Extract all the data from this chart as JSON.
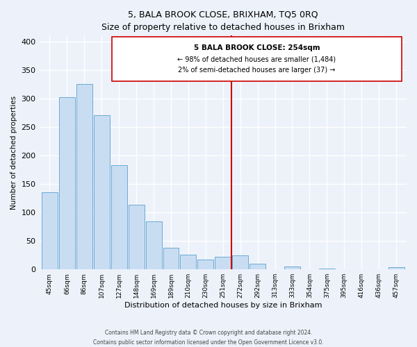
{
  "title": "5, BALA BROOK CLOSE, BRIXHAM, TQ5 0RQ",
  "subtitle": "Size of property relative to detached houses in Brixham",
  "xlabel": "Distribution of detached houses by size in Brixham",
  "ylabel": "Number of detached properties",
  "bar_labels": [
    "45sqm",
    "66sqm",
    "86sqm",
    "107sqm",
    "127sqm",
    "148sqm",
    "169sqm",
    "189sqm",
    "210sqm",
    "230sqm",
    "251sqm",
    "272sqm",
    "292sqm",
    "313sqm",
    "333sqm",
    "354sqm",
    "375sqm",
    "395sqm",
    "416sqm",
    "436sqm",
    "457sqm"
  ],
  "bar_heights": [
    135,
    302,
    325,
    271,
    183,
    113,
    84,
    38,
    26,
    17,
    22,
    25,
    10,
    0,
    5,
    0,
    2,
    0,
    0,
    0,
    4
  ],
  "bar_color": "#c9ddf2",
  "bar_edge_color": "#6aaad4",
  "vline_x_index": 10.5,
  "vline_color": "#cc0000",
  "annotation_title": "5 BALA BROOK CLOSE: 254sqm",
  "annotation_line1": "← 98% of detached houses are smaller (1,484)",
  "annotation_line2": "2% of semi-detached houses are larger (37) →",
  "footnote1": "Contains HM Land Registry data © Crown copyright and database right 2024.",
  "footnote2": "Contains public sector information licensed under the Open Government Licence v3.0.",
  "ylim": [
    0,
    410
  ],
  "bg_color": "#edf2fa",
  "plot_bg_color": "#edf2fa"
}
